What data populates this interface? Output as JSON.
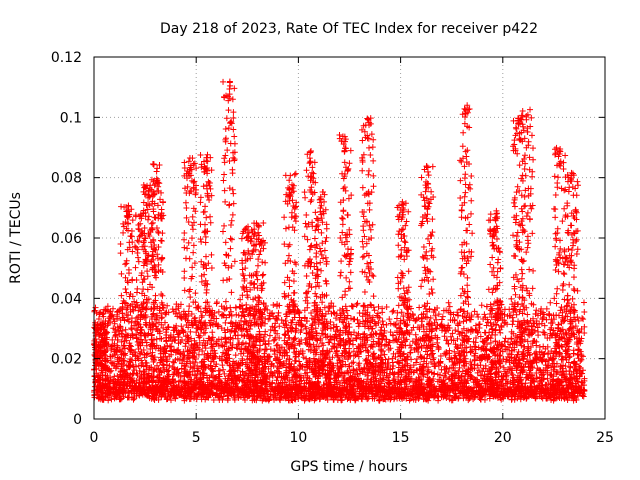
{
  "chart_data": {
    "type": "scatter",
    "title": "Day 218 of 2023, Rate Of TEC Index for receiver p422",
    "xlabel": "GPS time / hours",
    "ylabel": "ROTI / TECUs",
    "xlim": [
      0,
      25
    ],
    "ylim": [
      0,
      0.12
    ],
    "xticks": [
      0,
      5,
      10,
      15,
      20,
      25
    ],
    "yticks": [
      0,
      0.02,
      0.04,
      0.06,
      0.08,
      0.1,
      0.12
    ],
    "xtick_labels": [
      "0",
      "5",
      "10",
      "15",
      "20",
      "25"
    ],
    "ytick_labels": [
      "0",
      "0.02",
      "0.04",
      "0.06",
      "0.08",
      "0.1",
      "0.12"
    ],
    "grid": true,
    "marker": "+",
    "color": "#ff0000",
    "x_range_of_data": [
      0,
      24
    ],
    "series": [
      {
        "values_summary": "dense band of ROTI values mostly between 0.005 and 0.035 TECU/min across 0-24 h",
        "peaks": [
          {
            "x": 0.3,
            "y": 0.032
          },
          {
            "x": 1.6,
            "y": 0.071
          },
          {
            "x": 2.3,
            "y": 0.068
          },
          {
            "x": 2.7,
            "y": 0.079
          },
          {
            "x": 3.1,
            "y": 0.085
          },
          {
            "x": 4.7,
            "y": 0.087
          },
          {
            "x": 5.5,
            "y": 0.088
          },
          {
            "x": 6.6,
            "y": 0.112
          },
          {
            "x": 7.5,
            "y": 0.064
          },
          {
            "x": 8.1,
            "y": 0.065
          },
          {
            "x": 9.6,
            "y": 0.082
          },
          {
            "x": 10.6,
            "y": 0.089
          },
          {
            "x": 11.1,
            "y": 0.076
          },
          {
            "x": 12.3,
            "y": 0.095
          },
          {
            "x": 13.4,
            "y": 0.1
          },
          {
            "x": 15.1,
            "y": 0.072
          },
          {
            "x": 16.3,
            "y": 0.084
          },
          {
            "x": 18.2,
            "y": 0.105
          },
          {
            "x": 19.6,
            "y": 0.069
          },
          {
            "x": 20.8,
            "y": 0.1
          },
          {
            "x": 21.2,
            "y": 0.103
          },
          {
            "x": 22.8,
            "y": 0.09
          },
          {
            "x": 23.4,
            "y": 0.082
          }
        ]
      }
    ]
  }
}
